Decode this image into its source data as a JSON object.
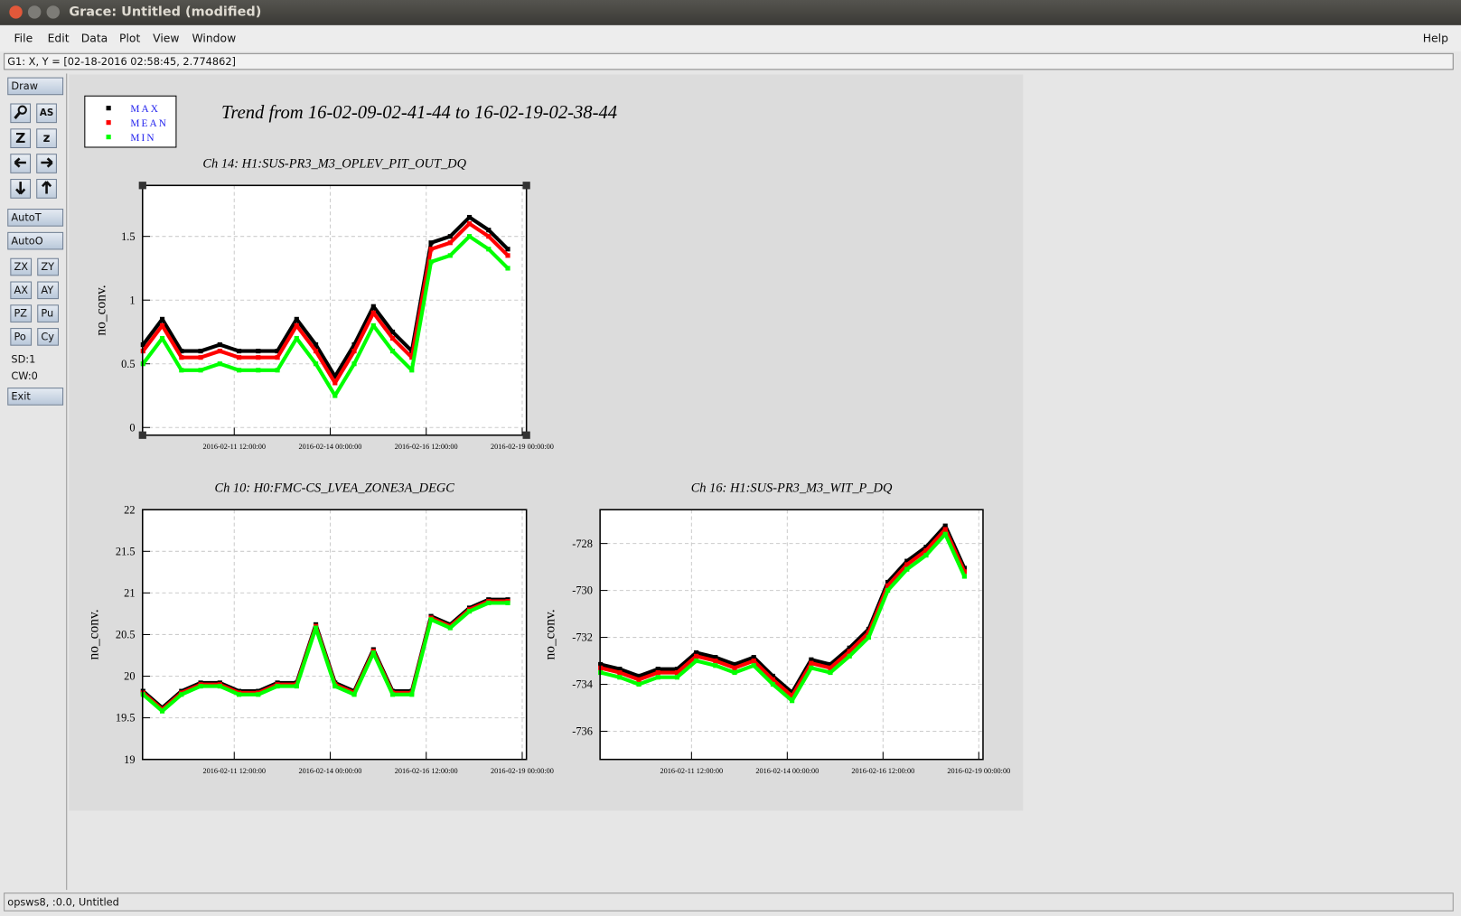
{
  "window": {
    "title": "Grace: Untitled (modified)"
  },
  "menu": [
    "File",
    "Edit",
    "Data",
    "Plot",
    "View",
    "Window"
  ],
  "help": "Help",
  "locator": "G1: X, Y = [02-18-2016 02:58:45, 2.774862]",
  "toolbar": {
    "draw": "Draw",
    "as_icon": "AS",
    "zoom": "Z",
    "shrink": "z",
    "autot": "AutoT",
    "autoo": "AutoO",
    "buttons": [
      [
        "ZX",
        "ZY"
      ],
      [
        "AX",
        "AY"
      ],
      [
        "PZ",
        "Pu"
      ],
      [
        "Po",
        "Cy"
      ]
    ],
    "sd": "SD:1",
    "cw": "CW:0",
    "exit": "Exit"
  },
  "status": "opsws8, :0.0, Untitled",
  "graph_title": "Trend from 16-02-09-02-41-44 to 16-02-19-02-38-44",
  "chart_data": [
    {
      "type": "scatter",
      "title": "Ch 14: H1:SUS-PR3_M3_OPLEV_PIT_OUT_DQ",
      "ylabel": "no_conv.",
      "legend": "upper-left",
      "grid": true,
      "x": [
        "2016-02-09 03:00:00",
        "2016-02-09 15:00:00",
        "2016-02-10 03:00:00",
        "2016-02-10 15:00:00",
        "2016-02-11 03:00:00",
        "2016-02-11 15:00:00",
        "2016-02-12 03:00:00",
        "2016-02-12 15:00:00",
        "2016-02-13 03:00:00",
        "2016-02-13 15:00:00",
        "2016-02-14 03:00:00",
        "2016-02-14 15:00:00",
        "2016-02-15 03:00:00",
        "2016-02-15 15:00:00",
        "2016-02-16 03:00:00",
        "2016-02-16 15:00:00",
        "2016-02-17 03:00:00",
        "2016-02-17 15:00:00",
        "2016-02-18 03:00:00",
        "2016-02-18 15:00:00"
      ],
      "series": [
        {
          "name": "MAX",
          "color": "#000000",
          "values": [
            0.65,
            0.85,
            0.6,
            0.6,
            0.65,
            0.6,
            0.6,
            0.6,
            0.85,
            0.65,
            0.4,
            0.65,
            0.95,
            0.75,
            0.6,
            1.45,
            1.5,
            1.65,
            1.55,
            1.4
          ]
        },
        {
          "name": "MEAN",
          "color": "#ff0000",
          "values": [
            0.6,
            0.8,
            0.55,
            0.55,
            0.6,
            0.55,
            0.55,
            0.55,
            0.8,
            0.6,
            0.35,
            0.6,
            0.9,
            0.7,
            0.55,
            1.4,
            1.45,
            1.6,
            1.5,
            1.35
          ]
        },
        {
          "name": "MIN",
          "color": "#00ff00",
          "values": [
            0.5,
            0.7,
            0.45,
            0.45,
            0.5,
            0.45,
            0.45,
            0.45,
            0.7,
            0.5,
            0.25,
            0.5,
            0.8,
            0.6,
            0.45,
            1.3,
            1.35,
            1.5,
            1.4,
            1.25
          ]
        }
      ],
      "xlim": [
        "2016-02-09 02:41:44",
        "2016-02-19 02:38:44"
      ],
      "xticks": [
        "2016-02-11 12:00:00",
        "2016-02-14 00:00:00",
        "2016-02-16 12:00:00",
        "2016-02-19 00:00:00"
      ],
      "ylim": [
        -0.06,
        1.9
      ],
      "yticks": [
        0,
        0.5,
        1,
        1.5
      ]
    },
    {
      "type": "scatter",
      "title": "Ch 10: H0:FMC-CS_LVEA_ZONE3A_DEGC",
      "ylabel": "no_conv.",
      "grid": true,
      "x": [
        "2016-02-09 03:00:00",
        "2016-02-09 15:00:00",
        "2016-02-10 03:00:00",
        "2016-02-10 15:00:00",
        "2016-02-11 03:00:00",
        "2016-02-11 15:00:00",
        "2016-02-12 03:00:00",
        "2016-02-12 15:00:00",
        "2016-02-13 03:00:00",
        "2016-02-13 15:00:00",
        "2016-02-14 03:00:00",
        "2016-02-14 15:00:00",
        "2016-02-15 03:00:00",
        "2016-02-15 15:00:00",
        "2016-02-16 03:00:00",
        "2016-02-16 15:00:00",
        "2016-02-17 03:00:00",
        "2016-02-17 15:00:00",
        "2016-02-18 03:00:00",
        "2016-02-18 15:00:00"
      ],
      "series": [
        {
          "color": "#000000",
          "values": [
            19.82,
            19.62,
            19.82,
            19.92,
            19.92,
            19.82,
            19.82,
            19.92,
            19.92,
            20.62,
            19.92,
            19.82,
            20.32,
            19.82,
            19.82,
            20.72,
            20.62,
            20.82,
            20.92,
            20.92
          ]
        },
        {
          "color": "#ff0000",
          "values": [
            19.8,
            19.6,
            19.8,
            19.9,
            19.9,
            19.8,
            19.8,
            19.9,
            19.9,
            20.6,
            19.9,
            19.8,
            20.3,
            19.8,
            19.8,
            20.7,
            20.6,
            20.8,
            20.9,
            20.9
          ]
        },
        {
          "color": "#00ff00",
          "values": [
            19.78,
            19.58,
            19.78,
            19.88,
            19.88,
            19.78,
            19.78,
            19.88,
            19.88,
            20.58,
            19.88,
            19.78,
            20.28,
            19.78,
            19.78,
            20.68,
            20.58,
            20.78,
            20.88,
            20.88
          ]
        }
      ],
      "xlim": [
        "2016-02-09 02:41:44",
        "2016-02-19 02:38:44"
      ],
      "xticks": [
        "2016-02-11 12:00:00",
        "2016-02-14 00:00:00",
        "2016-02-16 12:00:00",
        "2016-02-19 00:00:00"
      ],
      "ylim": [
        19,
        22
      ],
      "yticks": [
        19,
        19.5,
        20,
        20.5,
        21,
        21.5,
        22
      ]
    },
    {
      "type": "scatter",
      "title": "Ch 16: H1:SUS-PR3_M3_WIT_P_DQ",
      "ylabel": "no_conv.",
      "grid": true,
      "x": [
        "2016-02-09 03:00:00",
        "2016-02-09 15:00:00",
        "2016-02-10 03:00:00",
        "2016-02-10 15:00:00",
        "2016-02-11 03:00:00",
        "2016-02-11 15:00:00",
        "2016-02-12 03:00:00",
        "2016-02-12 15:00:00",
        "2016-02-13 03:00:00",
        "2016-02-13 15:00:00",
        "2016-02-14 03:00:00",
        "2016-02-14 15:00:00",
        "2016-02-15 03:00:00",
        "2016-02-15 15:00:00",
        "2016-02-16 03:00:00",
        "2016-02-16 15:00:00",
        "2016-02-17 03:00:00",
        "2016-02-17 15:00:00",
        "2016-02-18 03:00:00",
        "2016-02-18 15:00:00"
      ],
      "series": [
        {
          "color": "#000000",
          "values": [
            -733.15,
            -733.35,
            -733.65,
            -733.35,
            -733.35,
            -732.65,
            -732.85,
            -733.15,
            -732.85,
            -733.65,
            -734.35,
            -732.95,
            -733.15,
            -732.45,
            -731.65,
            -729.65,
            -728.75,
            -728.15,
            -727.25,
            -729.05
          ]
        },
        {
          "color": "#ff0000",
          "values": [
            -733.3,
            -733.5,
            -733.8,
            -733.5,
            -733.5,
            -732.8,
            -733,
            -733.3,
            -733,
            -733.8,
            -734.5,
            -733.1,
            -733.3,
            -732.6,
            -731.8,
            -729.8,
            -728.9,
            -728.3,
            -727.4,
            -729.2
          ]
        },
        {
          "color": "#00ff00",
          "values": [
            -733.5,
            -733.7,
            -734,
            -733.7,
            -733.7,
            -733,
            -733.2,
            -733.5,
            -733.2,
            -734,
            -734.7,
            -733.3,
            -733.5,
            -732.8,
            -732,
            -730,
            -729.1,
            -728.5,
            -727.6,
            -729.4
          ]
        }
      ],
      "xlim": [
        "2016-02-09 02:41:44",
        "2016-02-19 02:38:44"
      ],
      "xticks": [
        "2016-02-11 12:00:00",
        "2016-02-14 00:00:00",
        "2016-02-16 12:00:00",
        "2016-02-19 00:00:00"
      ],
      "ylim": [
        -737.2,
        -726.56
      ],
      "yticks": [
        -736,
        -734,
        -732,
        -730,
        -728
      ]
    }
  ]
}
